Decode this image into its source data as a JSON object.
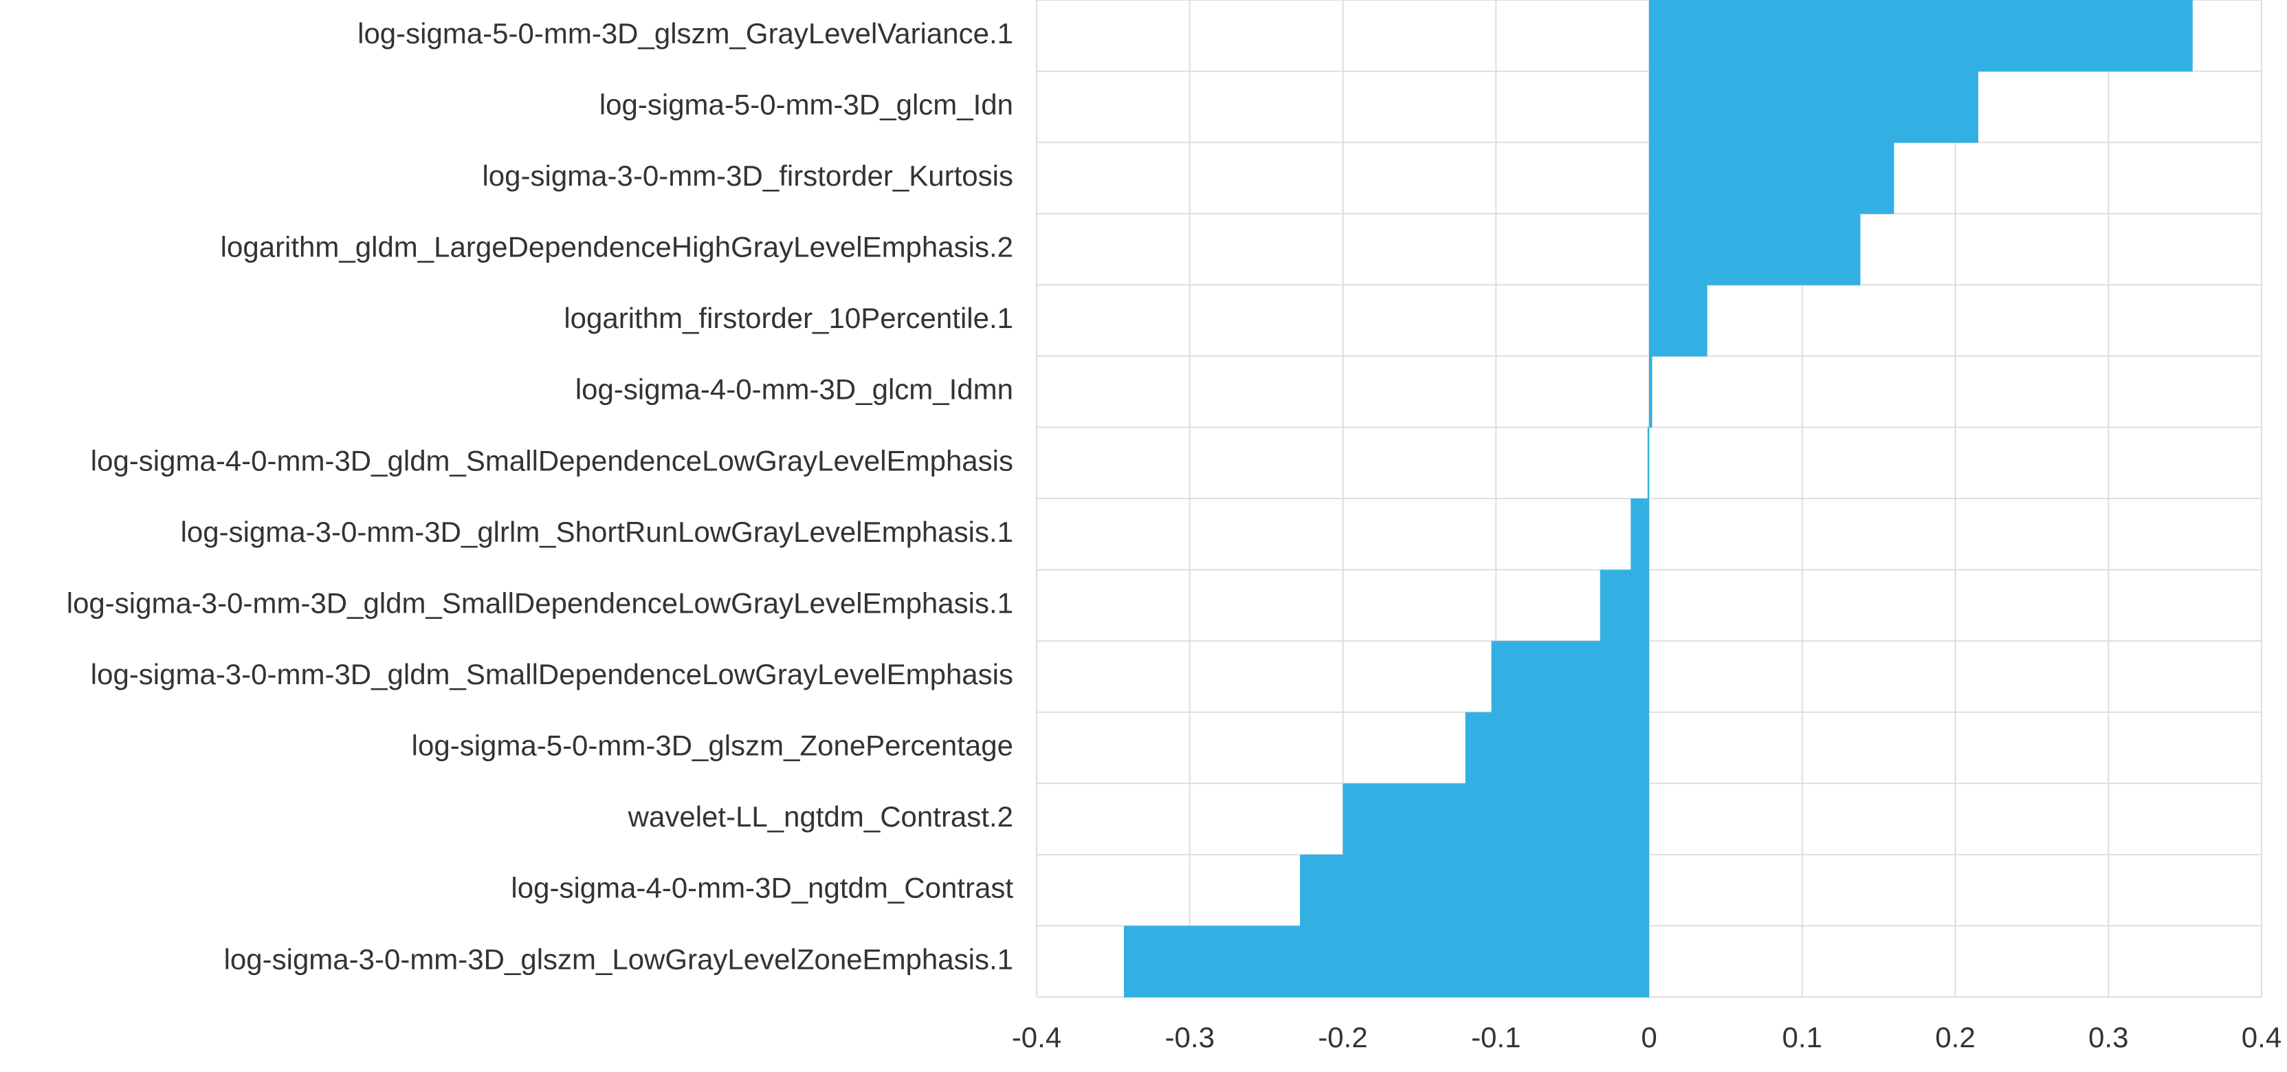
{
  "chart_data": {
    "type": "bar",
    "orientation": "horizontal",
    "categories": [
      "log-sigma-5-0-mm-3D_glszm_GrayLevelVariance.1",
      "log-sigma-5-0-mm-3D_glcm_Idn",
      "log-sigma-3-0-mm-3D_firstorder_Kurtosis",
      "logarithm_gldm_LargeDependenceHighGrayLevelEmphasis.2",
      "logarithm_firstorder_10Percentile.1",
      "log-sigma-4-0-mm-3D_glcm_Idmn",
      "log-sigma-4-0-mm-3D_gldm_SmallDependenceLowGrayLevelEmphasis",
      "log-sigma-3-0-mm-3D_glrlm_ShortRunLowGrayLevelEmphasis.1",
      "log-sigma-3-0-mm-3D_gldm_SmallDependenceLowGrayLevelEmphasis.1",
      "log-sigma-3-0-mm-3D_gldm_SmallDependenceLowGrayLevelEmphasis",
      "log-sigma-5-0-mm-3D_glszm_ZonePercentage",
      "wavelet-LL_ngtdm_Contrast.2",
      "log-sigma-4-0-mm-3D_ngtdm_Contrast",
      "log-sigma-3-0-mm-3D_glszm_LowGrayLevelZoneEmphasis.1"
    ],
    "values": [
      0.355,
      0.215,
      0.16,
      0.138,
      0.038,
      0.002,
      -0.001,
      -0.012,
      -0.032,
      -0.103,
      -0.12,
      -0.2,
      -0.228,
      -0.343
    ],
    "xlim": [
      -0.4,
      0.4
    ],
    "xticks": [
      "-0.4",
      "-0.3",
      "-0.2",
      "-0.1",
      "0",
      "0.1",
      "0.2",
      "0.3",
      "0.4"
    ],
    "grid": true,
    "bar_color": "#32b0e3",
    "title": "",
    "xlabel": "",
    "ylabel": ""
  }
}
